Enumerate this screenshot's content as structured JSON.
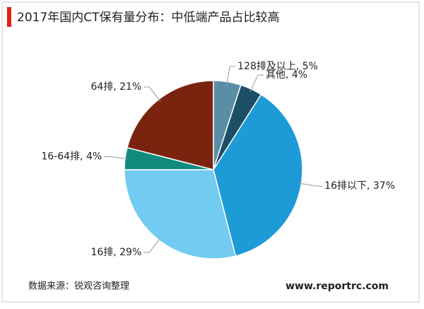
{
  "chart_data": {
    "type": "pie",
    "title": "2017年国内CT保有量分布：中低端产品占比较高",
    "labels": [
      "128排及以上, 5%",
      "其他, 4%",
      "16排以下, 37%",
      "16排, 29%",
      "16-64排, 4%",
      "64排, 21%"
    ],
    "values": [
      5,
      4,
      37,
      29,
      4,
      21
    ],
    "colors": [
      "#5a8ea6",
      "#1d4e68",
      "#1c9bd6",
      "#72cbf0",
      "#0f8a7d",
      "#7a2410"
    ],
    "source": "数据来源：锐观咨询整理",
    "website": "www.reportrc.com"
  }
}
